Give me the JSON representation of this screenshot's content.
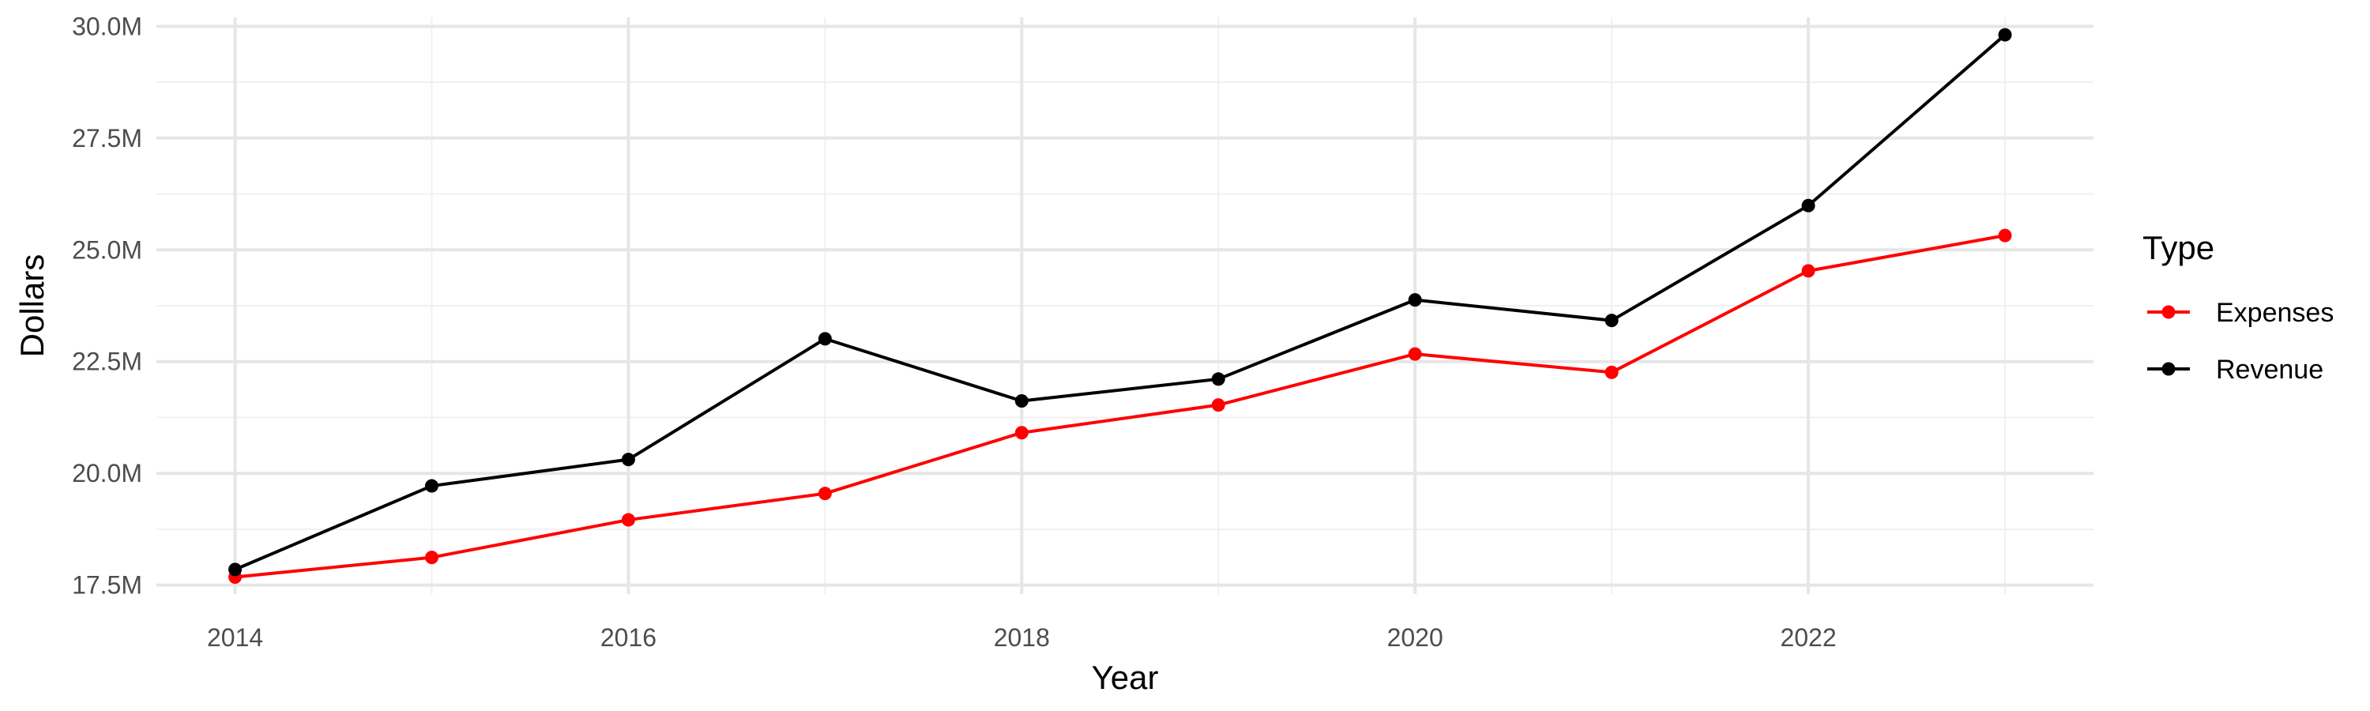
{
  "chart_data": {
    "type": "line",
    "title": "",
    "xlabel": "Year",
    "ylabel": "Dollars",
    "x": [
      2014,
      2015,
      2016,
      2017,
      2018,
      2019,
      2020,
      2021,
      2022,
      2023
    ],
    "xlim": [
      2013.6,
      2023.45
    ],
    "ylim": [
      17.3,
      30.2
    ],
    "x_ticks": [
      2014,
      2016,
      2018,
      2020,
      2022
    ],
    "x_tick_labels": [
      "2014",
      "2016",
      "2018",
      "2020",
      "2022"
    ],
    "y_ticks": [
      17.5,
      20.0,
      22.5,
      25.0,
      27.5,
      30.0
    ],
    "y_tick_labels": [
      "17.5M",
      "20.0M",
      "22.5M",
      "25.0M",
      "27.5M",
      "30.0M"
    ],
    "grid": true,
    "legend": {
      "title": "Type",
      "position": "right"
    },
    "series": [
      {
        "name": "Expenses",
        "color": "#ff0000",
        "values": [
          17.68,
          18.12,
          18.96,
          19.55,
          20.91,
          21.53,
          22.67,
          22.26,
          24.53,
          25.32
        ]
      },
      {
        "name": "Revenue",
        "color": "#000000",
        "values": [
          17.85,
          19.72,
          20.31,
          23.01,
          21.62,
          22.11,
          23.88,
          23.42,
          25.99,
          29.81
        ]
      }
    ]
  }
}
